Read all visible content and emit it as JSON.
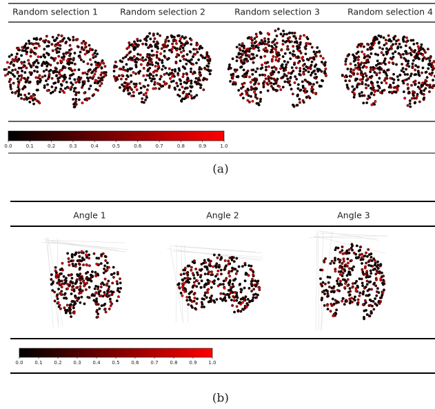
{
  "panel_a": {
    "titles": [
      "Random selection 1",
      "Random selection 2",
      "Random selection 3",
      "Random selection 4"
    ],
    "colorbar_ticks": [
      {
        "value": 0,
        "label": "0.0"
      },
      {
        "value": 0.1,
        "label": "0.1"
      },
      {
        "value": 0.2,
        "label": "0.2"
      },
      {
        "value": 0.3,
        "label": "0.3"
      },
      {
        "value": 0.4,
        "label": "0.4"
      },
      {
        "value": 0.5,
        "label": "0.5"
      },
      {
        "value": 0.6,
        "label": "0.6"
      },
      {
        "value": 0.7,
        "label": "0.7"
      },
      {
        "value": 0.8,
        "label": "0.8"
      },
      {
        "value": 0.9,
        "label": "0.9"
      },
      {
        "value": 1,
        "label": "1.0"
      }
    ],
    "caption": "(a)"
  },
  "panel_b": {
    "titles": [
      "Angle 1",
      "Angle 2",
      "Angle 3"
    ],
    "colorbar_ticks": [
      {
        "value": 0,
        "label": "0.0"
      },
      {
        "value": 0.1,
        "label": "0.1"
      },
      {
        "value": 0.2,
        "label": "0.2"
      },
      {
        "value": 0.3,
        "label": "0.3"
      },
      {
        "value": 0.4,
        "label": "0.4"
      },
      {
        "value": 0.5,
        "label": "0.5"
      },
      {
        "value": 0.6,
        "label": "0.6"
      },
      {
        "value": 0.7,
        "label": "0.7"
      },
      {
        "value": 0.8,
        "label": "0.8"
      },
      {
        "value": 0.9,
        "label": "0.9"
      },
      {
        "value": 1,
        "label": "1.0"
      }
    ],
    "caption": "(b)"
  }
}
